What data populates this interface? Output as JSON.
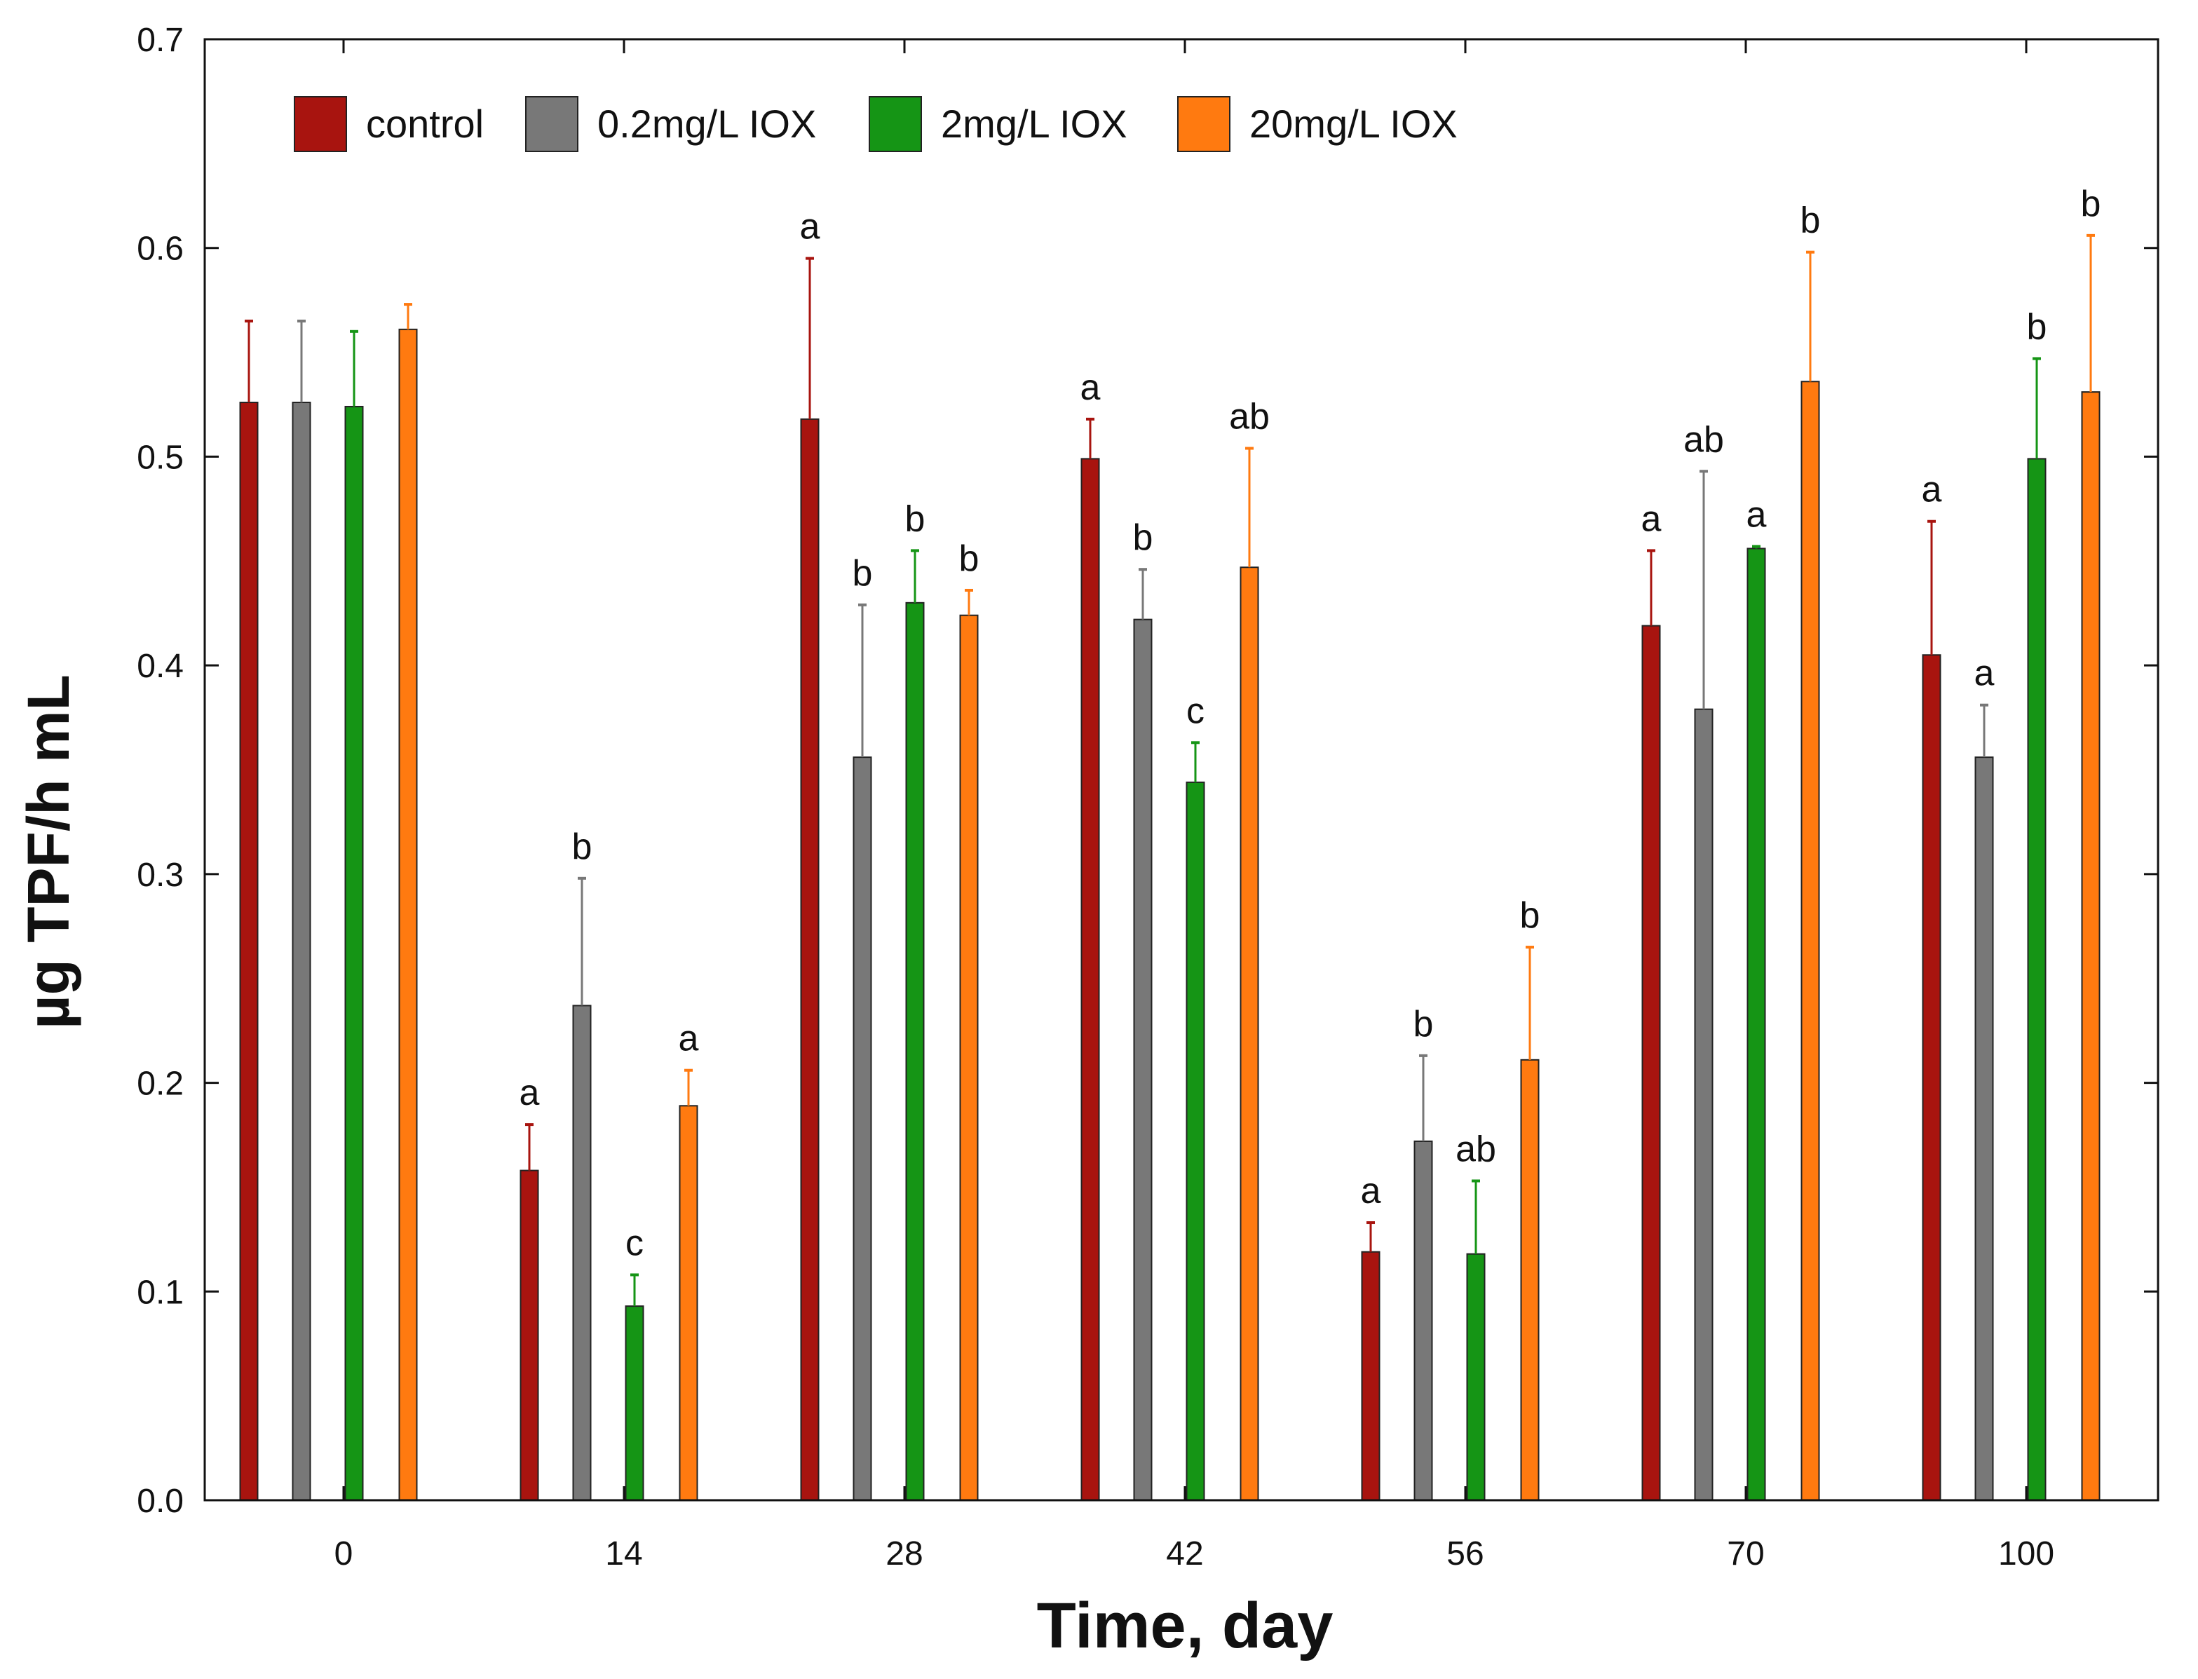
{
  "chart_data": {
    "type": "bar",
    "title": "",
    "xlabel": "Time, day",
    "ylabel": "µg TPF/h mL",
    "ylim": [
      0,
      0.7
    ],
    "yticks": [
      "0.0",
      "0.1",
      "0.2",
      "0.3",
      "0.4",
      "0.5",
      "0.6",
      "0.7"
    ],
    "categories": [
      "0",
      "14",
      "28",
      "42",
      "56",
      "70",
      "100"
    ],
    "legend_position": "top-left",
    "series": [
      {
        "name": "control",
        "color": "#a8140f",
        "values": [
          0.526,
          0.158,
          0.518,
          0.499,
          0.119,
          0.419,
          0.405
        ],
        "errors": [
          0.039,
          0.022,
          0.077,
          0.019,
          0.014,
          0.036,
          0.064
        ],
        "labels": [
          "",
          "a",
          "a",
          "a",
          "a",
          "a",
          "a"
        ]
      },
      {
        "name": "0.2mg/L IOX",
        "color": "#787878",
        "values": [
          0.526,
          0.237,
          0.356,
          0.422,
          0.172,
          0.379,
          0.356
        ],
        "errors": [
          0.039,
          0.061,
          0.073,
          0.024,
          0.041,
          0.114,
          0.025
        ],
        "labels": [
          "",
          "b",
          "b",
          "b",
          "b",
          "ab",
          "a"
        ]
      },
      {
        "name": "2mg/L IOX",
        "color": "#159515",
        "values": [
          0.524,
          0.093,
          0.43,
          0.344,
          0.118,
          0.456,
          0.499
        ],
        "errors": [
          0.036,
          0.015,
          0.025,
          0.019,
          0.035,
          0.001,
          0.048
        ],
        "labels": [
          "",
          "c",
          "b",
          "c",
          "ab",
          "a",
          "b"
        ]
      },
      {
        "name": "20mg/L IOX",
        "color": "#ff7a10",
        "values": [
          0.561,
          0.189,
          0.424,
          0.447,
          0.211,
          0.536,
          0.531
        ],
        "errors": [
          0.012,
          0.017,
          0.012,
          0.057,
          0.054,
          0.062,
          0.075
        ],
        "labels": [
          "",
          "a",
          "b",
          "ab",
          "b",
          "b",
          "b"
        ]
      }
    ]
  }
}
